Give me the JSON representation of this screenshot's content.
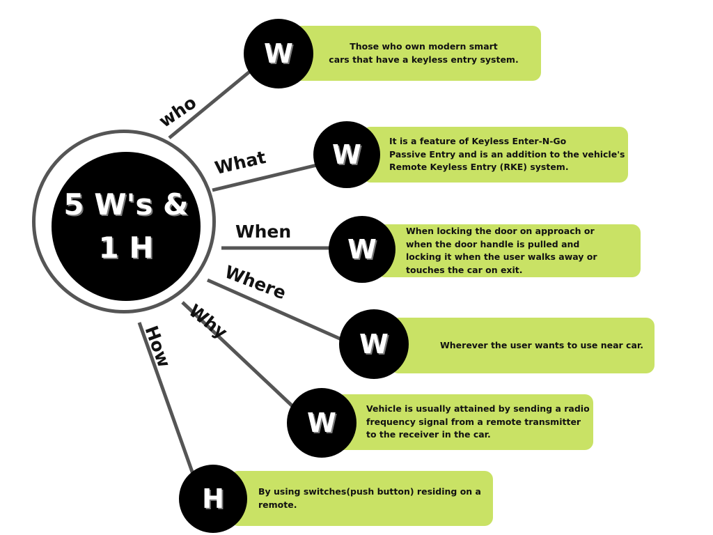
{
  "hub": {
    "title": "5 W's &\n1 H"
  },
  "branches": [
    {
      "question": "who",
      "badge": "W",
      "text": "Those who own modern smart\ncars that have a keyless entry system."
    },
    {
      "question": "What",
      "badge": "W",
      "text": "It is a feature of Keyless Enter-N-Go\nPassive Entry and is an addition to the vehicle's\nRemote Keyless Entry (RKE) system."
    },
    {
      "question": "When",
      "badge": "W",
      "text": "When locking the door on approach or\nwhen the door handle is pulled and\nlocking it when the user walks away or\ntouches the car on exit."
    },
    {
      "question": "Where",
      "badge": "W",
      "text": "Wherever the user wants to use near car."
    },
    {
      "question": "Why",
      "badge": "W",
      "text": "Vehicle is usually attained by sending a radio\nfrequency signal from a remote transmitter\nto the receiver in the car."
    },
    {
      "question": "How",
      "badge": "H",
      "text": "By using switches(push button) residing on a\nremote."
    }
  ],
  "colors": {
    "box": "#c9e265",
    "circle": "#000000",
    "line": "#555555",
    "ring": "#555555"
  }
}
